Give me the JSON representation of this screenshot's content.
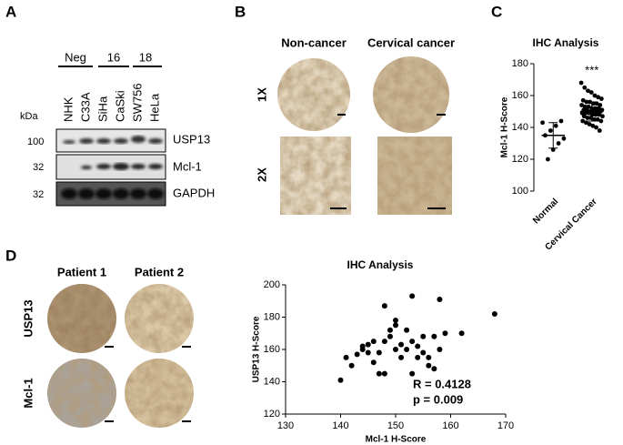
{
  "figure": {
    "panel_a": {
      "label": "A",
      "unit": "kDa",
      "groups": [
        "Neg",
        "16",
        "18"
      ],
      "lanes": [
        "NHK",
        "C33A",
        "SiHa",
        "CaSki",
        "SW756",
        "HeLa"
      ],
      "markers": [
        100,
        32,
        32
      ],
      "proteins": [
        "USP13",
        "Mcl-1",
        "GAPDH"
      ]
    },
    "panel_b": {
      "label": "B",
      "columns": [
        "Non-cancer",
        "Cervical cancer"
      ],
      "rows": [
        "1X",
        "2X"
      ]
    },
    "panel_c": {
      "label": "C"
    },
    "panel_d": {
      "label": "D",
      "columns": [
        "Patient 1",
        "Patient 2"
      ],
      "rows": [
        "USP13",
        "Mcl-1"
      ]
    }
  },
  "chart_data": [
    {
      "type": "strip",
      "title": "IHC Analysis",
      "y_label": "Mcl-1 H-Score",
      "categories": [
        "Normal",
        "Cervical Cancer"
      ],
      "values": [
        [
          143,
          144,
          141,
          138,
          135,
          133,
          130,
          126,
          120
        ],
        [
          168,
          165,
          163,
          162,
          160,
          159,
          158,
          157,
          156,
          156,
          155,
          155,
          154,
          154,
          153,
          153,
          152,
          152,
          152,
          151,
          151,
          151,
          150,
          150,
          150,
          150,
          149,
          149,
          149,
          148,
          148,
          148,
          147,
          147,
          146,
          146,
          145,
          145,
          144,
          144,
          143,
          142,
          141,
          140,
          138
        ]
      ],
      "means": [
        135,
        150
      ],
      "errors": [
        8,
        6
      ],
      "annotation": "***",
      "color": "#000000",
      "ylim": [
        100,
        180
      ],
      "yticks": [
        100,
        120,
        140,
        160,
        180
      ]
    },
    {
      "type": "scatter",
      "title": "IHC Analysis",
      "x_label": "Mcl-1 H-Score",
      "y_label": "USP13 H-Score",
      "x": [
        140,
        141,
        142,
        143,
        144,
        144,
        145,
        145,
        146,
        146,
        147,
        147,
        148,
        148,
        148,
        149,
        149,
        150,
        150,
        150,
        151,
        151,
        152,
        152,
        153,
        153,
        153,
        154,
        154,
        155,
        155,
        156,
        156,
        157,
        157,
        158,
        158,
        159,
        162,
        168
      ],
      "y": [
        141,
        155,
        150,
        157,
        160,
        162,
        158,
        163,
        152,
        165,
        145,
        158,
        145,
        165,
        187,
        168,
        172,
        160,
        175,
        178,
        155,
        163,
        172,
        160,
        145,
        165,
        193,
        155,
        162,
        158,
        168,
        150,
        155,
        148,
        168,
        160,
        191,
        170,
        170,
        182
      ],
      "annotations": [
        "R = 0.4128",
        "p = 0.009"
      ],
      "color": "#000000",
      "xlim": [
        130,
        170
      ],
      "xticks": [
        130,
        140,
        150,
        160,
        170
      ],
      "ylim": [
        120,
        200
      ],
      "yticks": [
        120,
        140,
        160,
        180,
        200
      ]
    }
  ]
}
